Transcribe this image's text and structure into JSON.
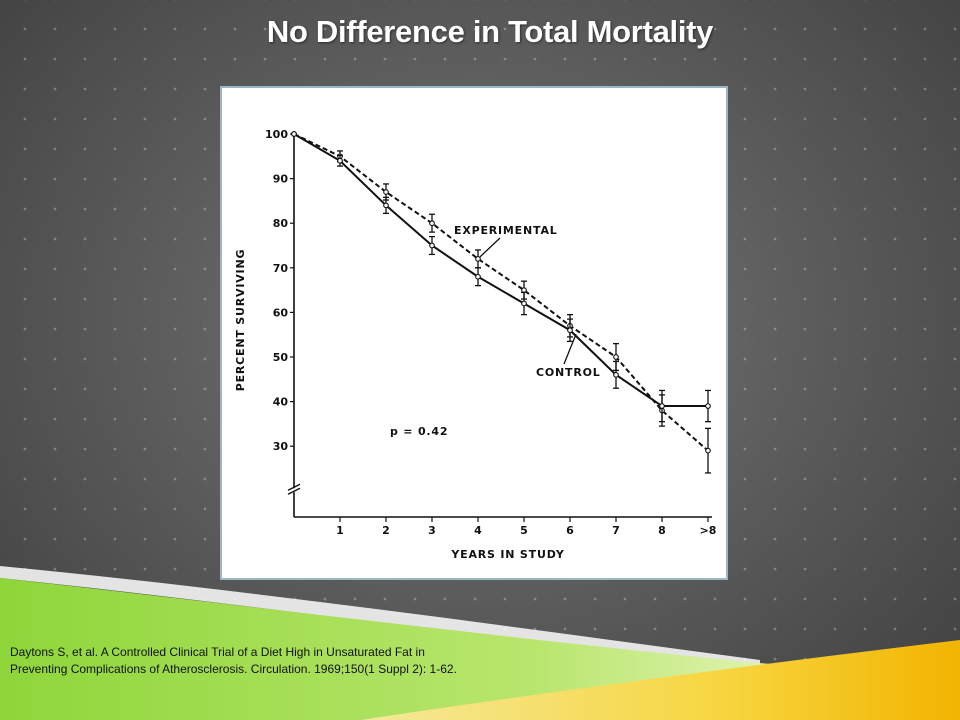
{
  "slide": {
    "title": "No Difference in Total Mortality",
    "citation_line1": "Daytons S, et al.  A Controlled Clinical Trial of a Diet High in Unsaturated Fat in",
    "citation_line2": "Preventing Complications of Atherosclerosis.  Circulation. 1969;150(1 Suppl 2): 1-62."
  },
  "chart_data": {
    "type": "line",
    "title": "",
    "xlabel": "YEARS   IN   STUDY",
    "ylabel": "PERCENT   SURVIVING",
    "x": [
      0,
      1,
      2,
      3,
      4,
      5,
      6,
      7,
      8,
      9
    ],
    "x_tick_labels": [
      "1",
      "2",
      "3",
      "4",
      "5",
      "6",
      "7",
      "8",
      ">8"
    ],
    "y_ticks": [
      30,
      40,
      50,
      60,
      70,
      80,
      90,
      100
    ],
    "ylim": [
      30,
      100
    ],
    "y_axis_break": true,
    "grid": false,
    "annotation": "p = 0.42",
    "series": [
      {
        "name": "EXPERIMENTAL",
        "style": "dashed",
        "values": [
          100,
          95,
          87,
          80,
          72,
          65,
          57,
          50,
          38,
          29
        ],
        "errors": [
          0,
          1.2,
          1.8,
          2,
          2,
          2,
          2.5,
          3,
          3.5,
          5
        ]
      },
      {
        "name": "CONTROL",
        "style": "solid",
        "values": [
          100,
          94,
          84,
          75,
          68,
          62,
          56,
          46,
          39,
          39
        ],
        "errors": [
          0,
          1.2,
          1.8,
          2,
          2,
          2.5,
          2.5,
          3,
          3.5,
          3.5
        ]
      }
    ],
    "colors": {
      "line": "#111111"
    }
  }
}
